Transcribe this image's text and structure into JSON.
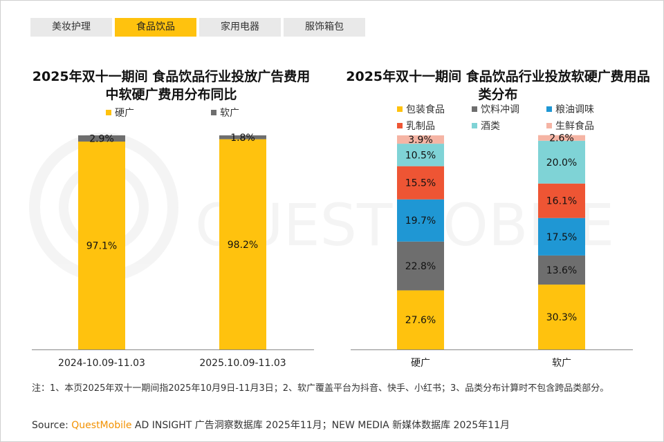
{
  "tabs": [
    "美妆护理",
    "食品饮品",
    "家用电器",
    "服饰箱包"
  ],
  "active_tab": 1,
  "watermark": "QUESTMOBILE",
  "chart_data": [
    {
      "type": "bar",
      "stacked": true,
      "title": "2025年双十一期间 食品饮品行业投放广告费用中软硬广费用分布同比",
      "categories": [
        "2024-10.09-11.03",
        "2025.10.09-11.03"
      ],
      "series": [
        {
          "name": "硬广",
          "values": [
            97.1,
            98.2
          ],
          "labels": [
            "97.1%",
            "98.2%"
          ],
          "color": "#ffc20e"
        },
        {
          "name": "软广",
          "values": [
            2.9,
            1.8
          ],
          "labels": [
            "2.9%",
            "1.8%"
          ],
          "color": "#6e6e6e"
        }
      ],
      "ylim": [
        0,
        100
      ],
      "legend": "top"
    },
    {
      "type": "bar",
      "stacked": true,
      "title": "2025年双十一期间 食品饮品行业投放软硬广费用品类分布",
      "categories": [
        "硬广",
        "软广"
      ],
      "series": [
        {
          "name": "包装食品",
          "values": [
            27.6,
            30.3
          ],
          "labels": [
            "27.6%",
            "30.3%"
          ],
          "color": "#ffc20e"
        },
        {
          "name": "饮料冲调",
          "values": [
            22.8,
            13.6
          ],
          "labels": [
            "22.8%",
            "13.6%"
          ],
          "color": "#6e6e6e"
        },
        {
          "name": "粮油调味",
          "values": [
            19.7,
            17.5
          ],
          "labels": [
            "19.7%",
            "17.5%"
          ],
          "color": "#1f97d4"
        },
        {
          "name": "乳制品",
          "values": [
            15.5,
            16.1
          ],
          "labels": [
            "15.5%",
            "16.1%"
          ],
          "color": "#ee5534"
        },
        {
          "name": "酒类",
          "values": [
            10.5,
            20.0
          ],
          "labels": [
            "10.5%",
            "20.0%"
          ],
          "color": "#7fd3d6"
        },
        {
          "name": "生鲜食品",
          "values": [
            3.9,
            2.6
          ],
          "labels": [
            "3.9%",
            "2.6%"
          ],
          "color": "#f5b4a4"
        }
      ],
      "ylim": [
        0,
        100
      ],
      "legend": "top"
    }
  ],
  "note": "注：1、本页2025年双十一期间指2025年10月9日-11月3日；2、软广覆盖平台为抖音、快手、小红书；3、品类分布计算时不包含跨品类部分。",
  "source": {
    "prefix": "Source:",
    "brand": "QuestMobile",
    "rest": " AD INSIGHT 广告洞察数据库 2025年11月；NEW MEDIA 新媒体数据库 2025年11月"
  }
}
